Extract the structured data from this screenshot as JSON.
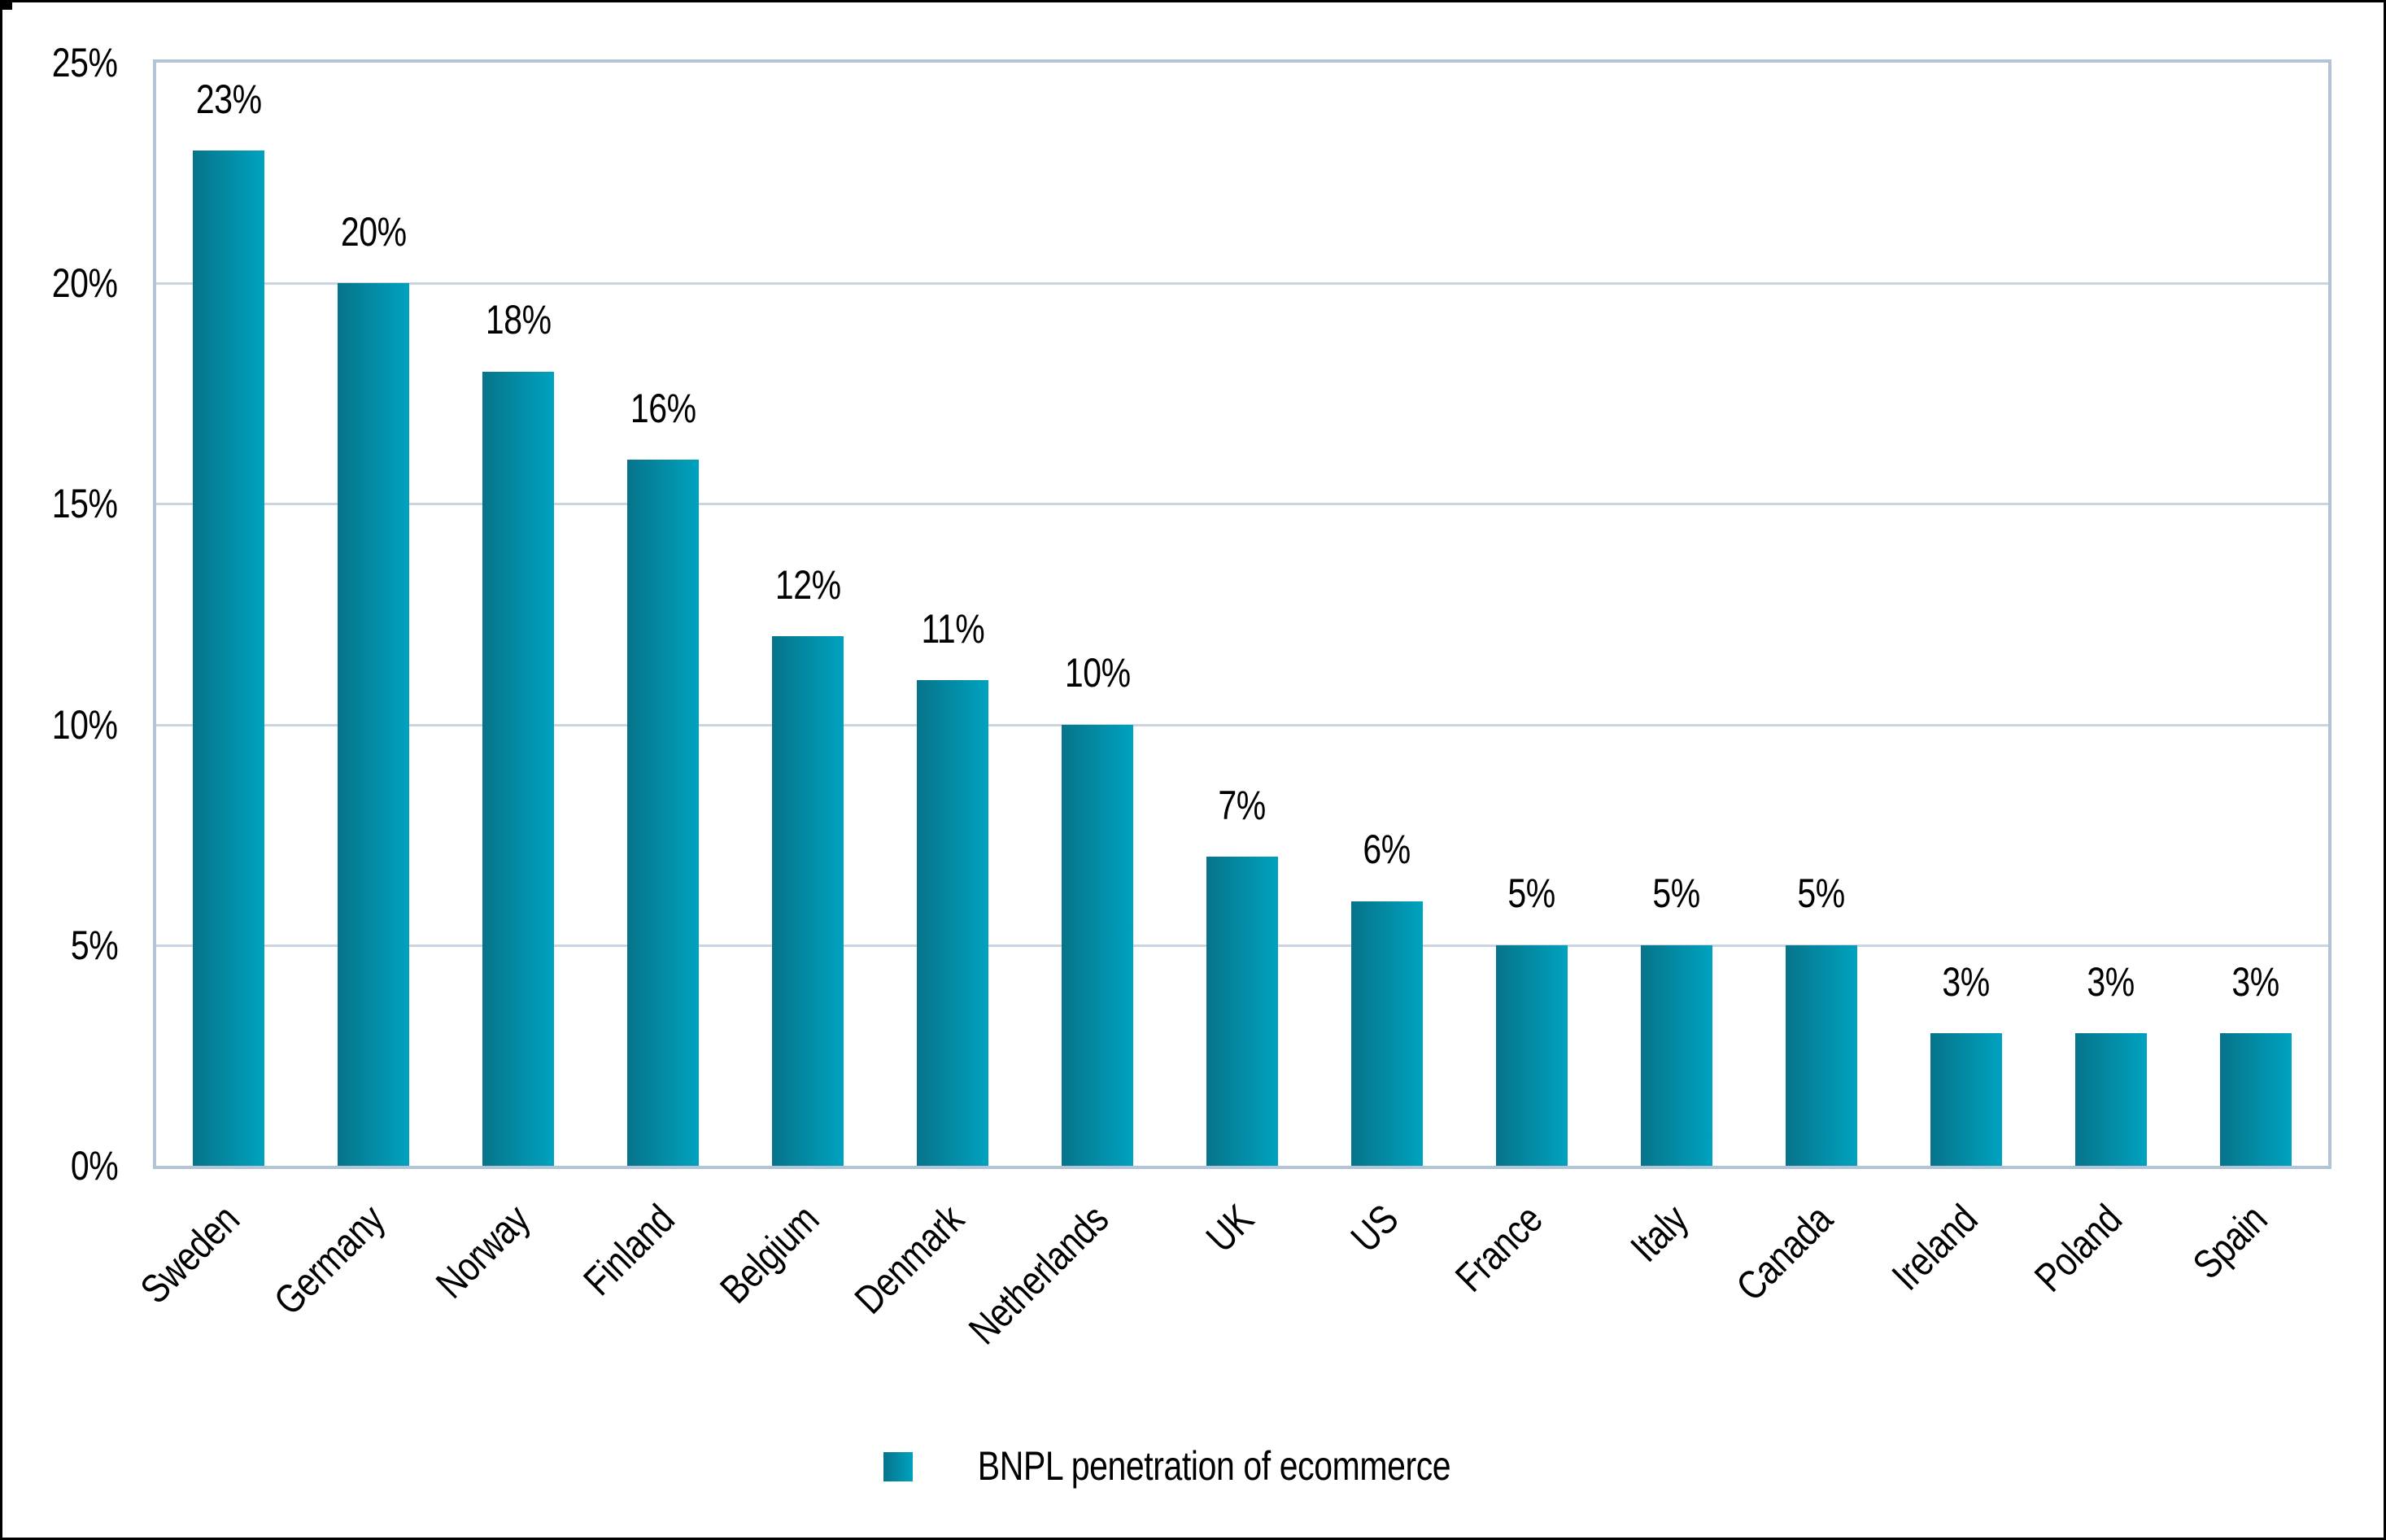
{
  "page": {
    "background": "#ffffff",
    "outer_border_color": "#000000"
  },
  "chart_data": {
    "type": "bar",
    "title": "",
    "xlabel": "",
    "ylabel": "",
    "categories": [
      "Sweden",
      "Germany",
      "Norway",
      "Finland",
      "Belgium",
      "Denmark",
      "Netherlands",
      "UK",
      "US",
      "France",
      "Italy",
      "Canada",
      "Ireland",
      "Poland",
      "Spain"
    ],
    "values": [
      23,
      20,
      18,
      16,
      12,
      11,
      10,
      7,
      6,
      5,
      5,
      5,
      3,
      3,
      3
    ],
    "value_labels": [
      "23%",
      "20%",
      "18%",
      "16%",
      "12%",
      "11%",
      "10%",
      "7%",
      "6%",
      "5%",
      "5%",
      "5%",
      "3%",
      "3%",
      "3%"
    ],
    "series": [
      {
        "name": "BNPL penetration of ecommerce",
        "values": [
          23,
          20,
          18,
          16,
          12,
          11,
          10,
          7,
          6,
          5,
          5,
          5,
          3,
          3,
          3
        ]
      }
    ],
    "ylim": [
      0,
      25
    ],
    "y_ticks": [
      "0%",
      "5%",
      "10%",
      "15%",
      "20%",
      "25%"
    ],
    "grid": true,
    "legend_position": "bottom-center",
    "bar_gradient_left": "#06748a",
    "bar_gradient_right": "#00a2bf",
    "gridline_color": "#c9d5e0",
    "plot_border_color": "#b3c4d6",
    "label_color": "#000000"
  },
  "legend": {
    "label": "BNPL penetration of ecommerce"
  }
}
